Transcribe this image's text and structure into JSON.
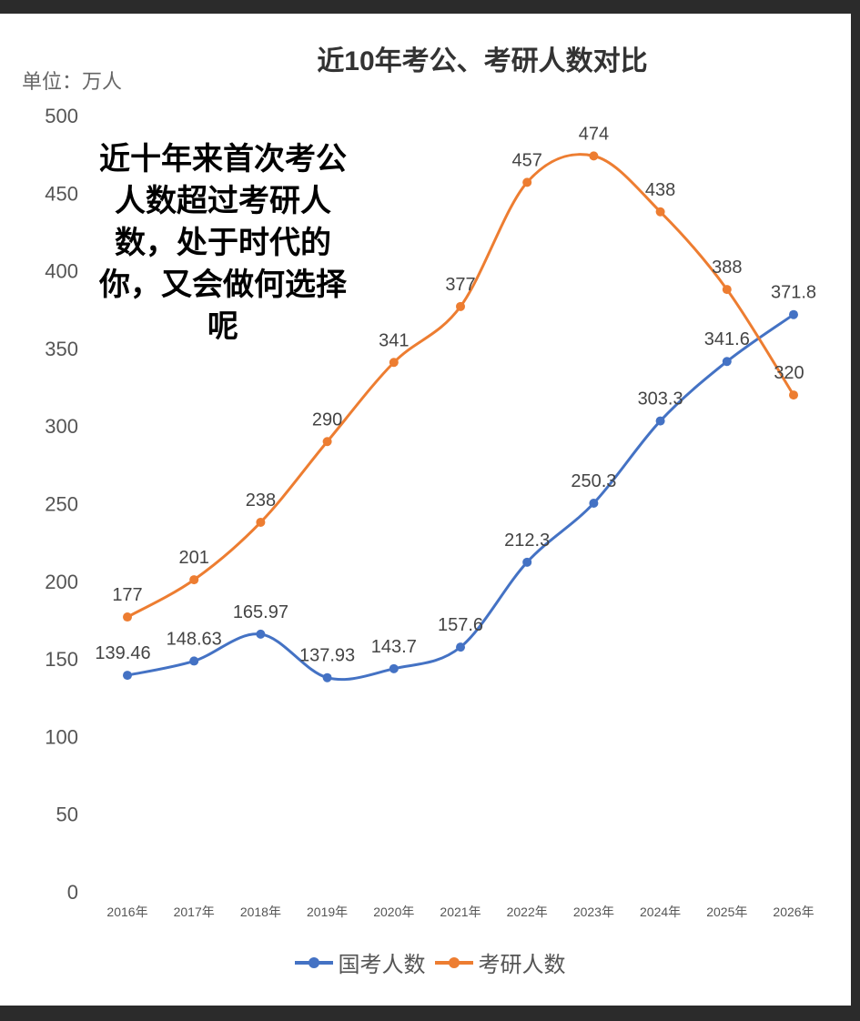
{
  "chart_data": {
    "type": "line",
    "title": "近10年考公、考研人数对比",
    "unit_label": "单位：万人",
    "annotation": "近十年来首次考公人数超过考研人数，处于时代的你，又会做何选择呢",
    "categories": [
      "2016年",
      "2017年",
      "2018年",
      "2019年",
      "2020年",
      "2021年",
      "2022年",
      "2023年",
      "2024年",
      "2025年",
      "2026年"
    ],
    "ylim": [
      0,
      500
    ],
    "yticks": [
      0,
      50,
      100,
      150,
      200,
      250,
      300,
      350,
      400,
      450,
      500
    ],
    "grid": false,
    "smooth": true,
    "legend_position": "bottom",
    "series": [
      {
        "name": "国考人数",
        "color": "#4472c4",
        "values": [
          139.46,
          148.63,
          165.97,
          137.93,
          143.7,
          157.6,
          212.3,
          250.3,
          303.3,
          341.6,
          371.8
        ]
      },
      {
        "name": "考研人数",
        "color": "#ed7d31",
        "values": [
          177,
          201,
          238,
          290,
          341,
          377,
          457,
          474,
          438,
          388,
          320
        ]
      }
    ]
  }
}
